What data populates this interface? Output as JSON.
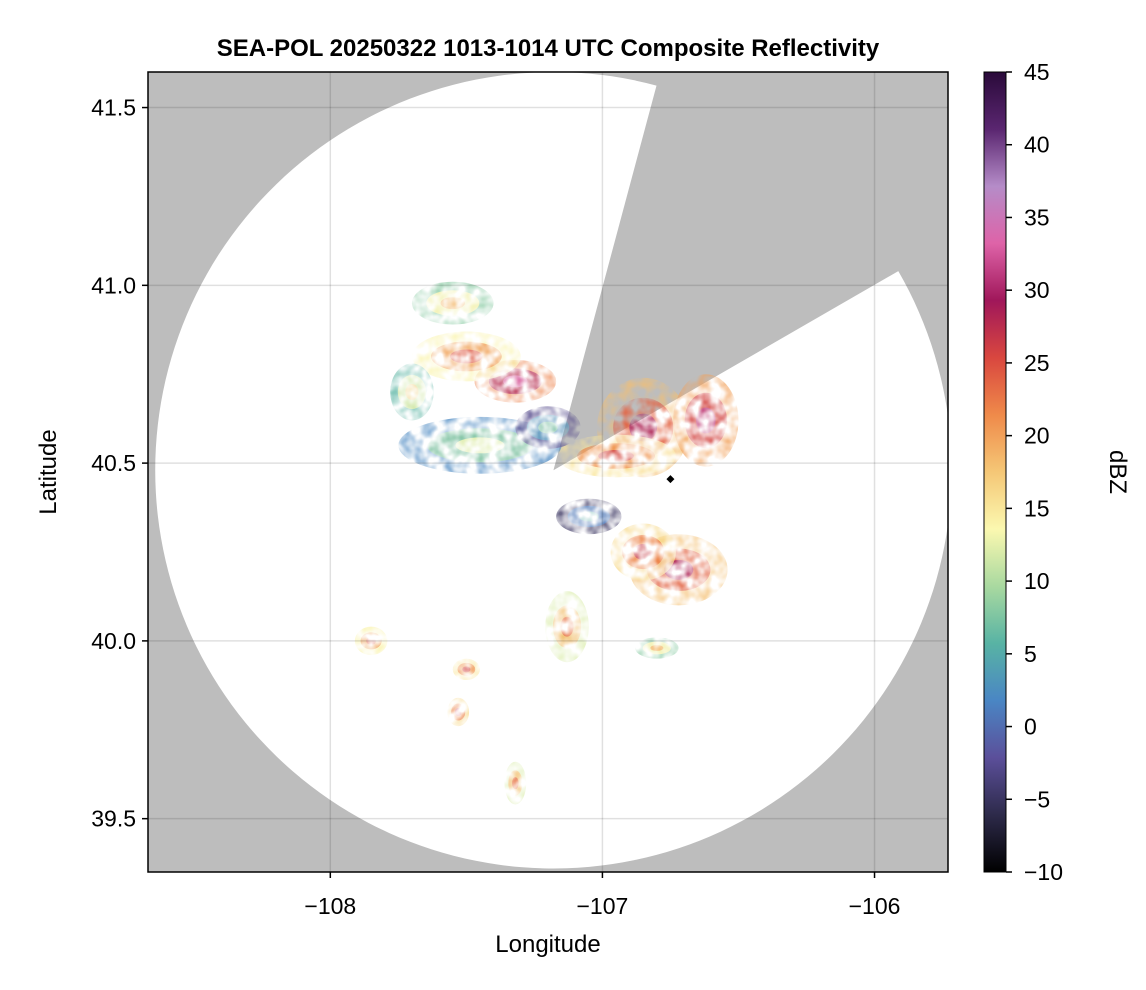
{
  "chart_data": {
    "type": "heatmap",
    "title": "SEA-POL 20250322 1013-1014 UTC Composite Reflectivity",
    "xlabel": "Longitude",
    "ylabel": "Latitude",
    "xlim": [
      -108.67,
      -105.73
    ],
    "ylim": [
      39.35,
      41.6
    ],
    "xticks": [
      -108,
      -107,
      -106
    ],
    "xtick_labels": [
      "−108",
      "−107",
      "−106"
    ],
    "yticks": [
      39.5,
      40.0,
      40.5,
      41.0,
      41.5
    ],
    "ytick_labels": [
      "39.5",
      "40.0",
      "40.5",
      "41.0",
      "41.5"
    ],
    "grid": true,
    "background_color": "#bdbdbd",
    "coverage_color": "#ffffff",
    "radar_site": {
      "lon": -107.18,
      "lat": 40.48
    },
    "coverage_radius_deg_lat": 1.12,
    "blocked_sector_bearing_deg": [
      15,
      60
    ],
    "marker": {
      "lon": -106.75,
      "lat": 40.455,
      "shape": "diamond",
      "color": "#000000"
    },
    "colorbar": {
      "label": "dBZ",
      "range": [
        -10,
        45
      ],
      "ticks": [
        45,
        40,
        35,
        30,
        25,
        20,
        15,
        10,
        5,
        0,
        -5,
        -10
      ],
      "tick_labels": [
        "45",
        "40",
        "35",
        "30",
        "25",
        "20",
        "15",
        "10",
        "5",
        "0",
        "−5",
        "−10"
      ],
      "colormap": "Spectral_r",
      "stops": [
        "#000000",
        "#2d2a4a",
        "#5b4f9a",
        "#4a86c4",
        "#58b3a4",
        "#a9d9a0",
        "#fbf8b0",
        "#f5c776",
        "#ef8a4a",
        "#d9473f",
        "#a0175a",
        "#de63a8",
        "#b58cc8",
        "#5a2670",
        "#2a0a3a"
      ]
    },
    "echo_regions": [
      {
        "lon": -106.85,
        "lat": 40.6,
        "rlon": 0.17,
        "rlat": 0.14,
        "dbz": 24
      },
      {
        "lon": -106.62,
        "lat": 40.62,
        "rlon": 0.12,
        "rlat": 0.13,
        "dbz": 26
      },
      {
        "lon": -106.95,
        "lat": 40.52,
        "rlon": 0.22,
        "rlat": 0.06,
        "dbz": 21
      },
      {
        "lon": -106.72,
        "lat": 40.2,
        "rlon": 0.18,
        "rlat": 0.1,
        "dbz": 24
      },
      {
        "lon": -106.85,
        "lat": 40.25,
        "rlon": 0.12,
        "rlat": 0.08,
        "dbz": 22
      },
      {
        "lon": -107.32,
        "lat": 40.73,
        "rlon": 0.15,
        "rlat": 0.06,
        "dbz": 28
      },
      {
        "lon": -107.5,
        "lat": 40.8,
        "rlon": 0.2,
        "rlat": 0.07,
        "dbz": 20
      },
      {
        "lon": -107.45,
        "lat": 40.55,
        "rlon": 0.3,
        "rlat": 0.08,
        "dbz": 8
      },
      {
        "lon": -107.05,
        "lat": 40.35,
        "rlon": 0.12,
        "rlat": 0.05,
        "dbz": 1
      },
      {
        "lon": -107.2,
        "lat": 40.6,
        "rlon": 0.12,
        "rlat": 0.06,
        "dbz": 3
      },
      {
        "lon": -107.13,
        "lat": 40.04,
        "rlon": 0.08,
        "rlat": 0.1,
        "dbz": 18
      },
      {
        "lon": -107.85,
        "lat": 40.0,
        "rlon": 0.06,
        "rlat": 0.04,
        "dbz": 20
      },
      {
        "lon": -107.5,
        "lat": 39.92,
        "rlon": 0.05,
        "rlat": 0.03,
        "dbz": 21
      },
      {
        "lon": -107.53,
        "lat": 39.8,
        "rlon": 0.04,
        "rlat": 0.04,
        "dbz": 22
      },
      {
        "lon": -107.32,
        "lat": 39.6,
        "rlon": 0.04,
        "rlat": 0.06,
        "dbz": 18
      },
      {
        "lon": -107.55,
        "lat": 40.95,
        "rlon": 0.15,
        "rlat": 0.06,
        "dbz": 14
      },
      {
        "lon": -106.8,
        "lat": 39.98,
        "rlon": 0.08,
        "rlat": 0.03,
        "dbz": 14
      },
      {
        "lon": -107.7,
        "lat": 40.7,
        "rlon": 0.08,
        "rlat": 0.08,
        "dbz": 12
      }
    ]
  }
}
